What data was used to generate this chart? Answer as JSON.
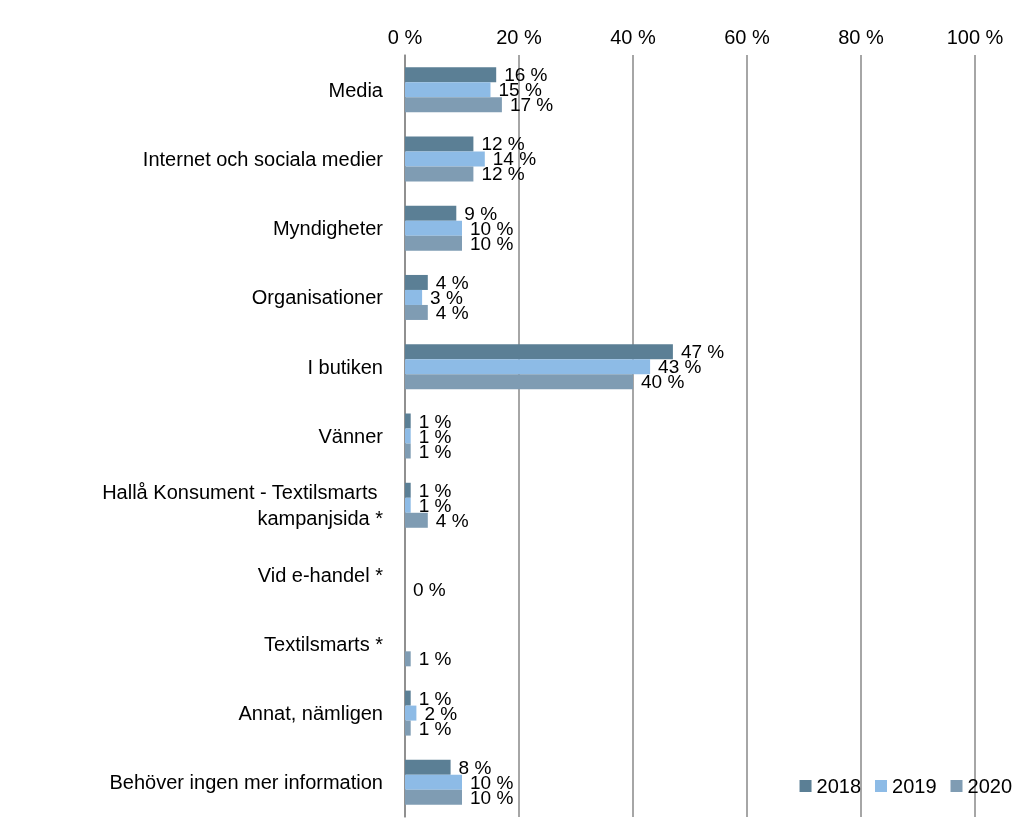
{
  "chart_data": {
    "type": "bar",
    "orientation": "horizontal",
    "categories": [
      "Media",
      "Internet och sociala medier",
      "Myndigheter",
      "Organisationer",
      "I butiken",
      "Vänner",
      "Hallå Konsument - Textilsmarts kampanjsida *",
      "Vid e-handel *",
      "Textilsmarts *",
      "Annat, nämligen",
      "Behöver ingen mer information"
    ],
    "series": [
      {
        "name": "2018",
        "color": "#5b7f95",
        "values": [
          16,
          12,
          9,
          4,
          47,
          1,
          1,
          null,
          null,
          1,
          8
        ],
        "value_labels": [
          "16 %",
          "12 %",
          "9 %",
          "4 %",
          "47 %",
          "1 %",
          "1 %",
          null,
          null,
          "1 %",
          "8 %"
        ]
      },
      {
        "name": "2019",
        "color": "#8dbbe6",
        "values": [
          15,
          14,
          10,
          3,
          43,
          1,
          1,
          null,
          null,
          2,
          10
        ],
        "value_labels": [
          "15 %",
          "14 %",
          "10 %",
          "3 %",
          "43 %",
          "1 %",
          "1 %",
          null,
          null,
          "2 %",
          "10 %"
        ]
      },
      {
        "name": "2020",
        "color": "#7f9cb3",
        "values": [
          17,
          12,
          10,
          4,
          40,
          1,
          4,
          0,
          1,
          1,
          10
        ],
        "value_labels": [
          "17 %",
          "12 %",
          "10 %",
          "4 %",
          "40 %",
          "1 %",
          "4 %",
          "0 %",
          "1 %",
          "1 %",
          "10 %"
        ]
      }
    ],
    "xlim": [
      0,
      100
    ],
    "xticks": [
      {
        "value": 0,
        "label": "0 %"
      },
      {
        "value": 20,
        "label": "20 %"
      },
      {
        "value": 40,
        "label": "40 %"
      },
      {
        "value": 60,
        "label": "60 %"
      },
      {
        "value": 80,
        "label": "80 %"
      },
      {
        "value": 100,
        "label": "100 %"
      }
    ],
    "grid": "x",
    "legend": "bottom right"
  }
}
